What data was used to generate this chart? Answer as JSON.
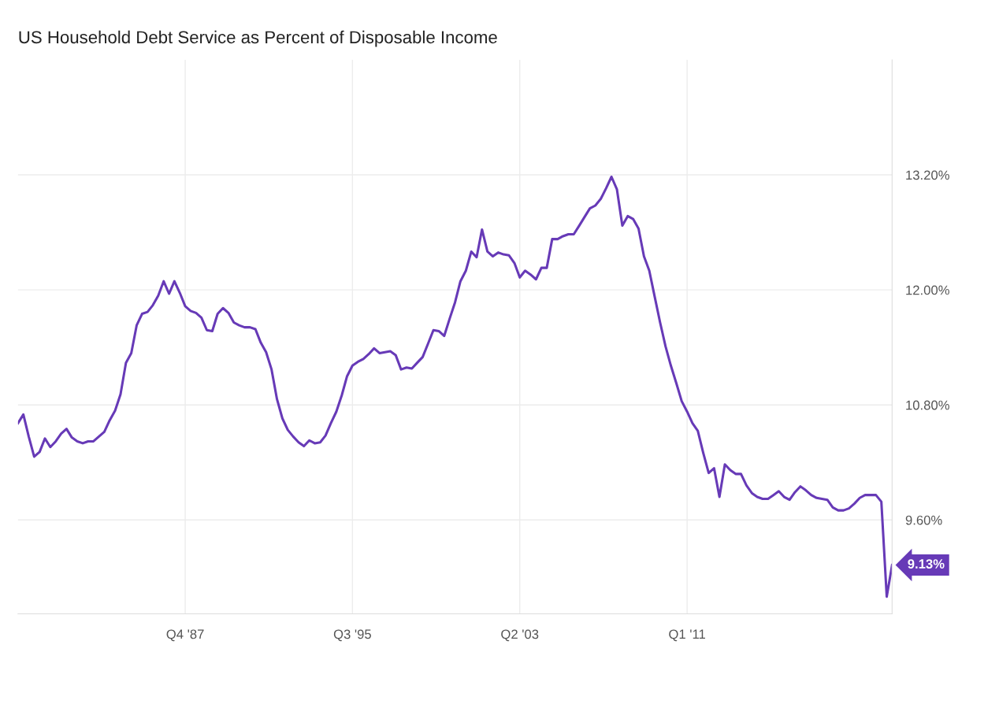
{
  "chart_data": {
    "type": "line",
    "title": "US Household Debt Service as Percent of Disposable Income",
    "x": [
      "1980-01",
      "1980-04",
      "1980-07",
      "1980-10",
      "1981-01",
      "1981-04",
      "1981-07",
      "1981-10",
      "1982-01",
      "1982-04",
      "1982-07",
      "1982-10",
      "1983-01",
      "1983-04",
      "1983-07",
      "1983-10",
      "1984-01",
      "1984-04",
      "1984-07",
      "1984-10",
      "1985-01",
      "1985-04",
      "1985-07",
      "1985-10",
      "1986-01",
      "1986-04",
      "1986-07",
      "1986-10",
      "1987-01",
      "1987-04",
      "1987-07",
      "1987-10",
      "1988-01",
      "1988-04",
      "1988-07",
      "1988-10",
      "1989-01",
      "1989-04",
      "1989-07",
      "1989-10",
      "1990-01",
      "1990-04",
      "1990-07",
      "1990-10",
      "1991-01",
      "1991-04",
      "1991-07",
      "1991-10",
      "1992-01",
      "1992-04",
      "1992-07",
      "1992-10",
      "1993-01",
      "1993-04",
      "1993-07",
      "1993-10",
      "1994-01",
      "1994-04",
      "1994-07",
      "1994-10",
      "1995-01",
      "1995-04",
      "1995-07",
      "1995-10",
      "1996-01",
      "1996-04",
      "1996-07",
      "1996-10",
      "1997-01",
      "1997-04",
      "1997-07",
      "1997-10",
      "1998-01",
      "1998-04",
      "1998-07",
      "1998-10",
      "1999-01",
      "1999-04",
      "1999-07",
      "1999-10",
      "2000-01",
      "2000-04",
      "2000-07",
      "2000-10",
      "2001-01",
      "2001-04",
      "2001-07",
      "2001-10",
      "2002-01",
      "2002-04",
      "2002-07",
      "2002-10",
      "2003-01",
      "2003-04",
      "2003-07",
      "2003-10",
      "2004-01",
      "2004-04",
      "2004-07",
      "2004-10",
      "2005-01",
      "2005-04",
      "2005-07",
      "2005-10",
      "2006-01",
      "2006-04",
      "2006-07",
      "2006-10",
      "2007-01",
      "2007-04",
      "2007-07",
      "2007-10",
      "2008-01",
      "2008-04",
      "2008-07",
      "2008-10",
      "2009-01",
      "2009-04",
      "2009-07",
      "2009-10",
      "2010-01",
      "2010-04",
      "2010-07",
      "2010-10",
      "2011-01",
      "2011-04",
      "2011-07",
      "2011-10",
      "2012-01",
      "2012-04",
      "2012-07",
      "2012-10",
      "2013-01",
      "2013-04",
      "2013-07",
      "2013-10",
      "2014-01",
      "2014-04",
      "2014-07",
      "2014-10",
      "2015-01",
      "2015-04",
      "2015-07",
      "2015-10",
      "2016-01",
      "2016-04",
      "2016-07",
      "2016-10",
      "2017-01",
      "2017-04",
      "2017-07",
      "2017-10",
      "2018-01",
      "2018-04",
      "2018-07",
      "2018-10",
      "2019-01",
      "2019-04",
      "2019-07",
      "2019-10",
      "2020-01",
      "2020-04",
      "2020-07"
    ],
    "series": [
      {
        "color": "#673ab7",
        "values": [
          10.61,
          10.7,
          10.47,
          10.26,
          10.31,
          10.45,
          10.36,
          10.42,
          10.5,
          10.55,
          10.46,
          10.42,
          10.4,
          10.42,
          10.42,
          10.47,
          10.52,
          10.64,
          10.74,
          10.91,
          11.24,
          11.34,
          11.63,
          11.75,
          11.77,
          11.84,
          11.94,
          12.09,
          11.96,
          12.09,
          11.97,
          11.83,
          11.78,
          11.76,
          11.71,
          11.58,
          11.57,
          11.75,
          11.81,
          11.76,
          11.66,
          11.63,
          11.61,
          11.61,
          11.59,
          11.45,
          11.35,
          11.17,
          10.86,
          10.66,
          10.54,
          10.47,
          10.41,
          10.37,
          10.43,
          10.4,
          10.41,
          10.48,
          10.61,
          10.73,
          10.9,
          11.1,
          11.21,
          11.25,
          11.28,
          11.33,
          11.39,
          11.34,
          11.35,
          11.36,
          11.32,
          11.17,
          11.19,
          11.18,
          11.24,
          11.3,
          11.44,
          11.58,
          11.57,
          11.52,
          11.7,
          11.87,
          12.09,
          12.2,
          12.4,
          12.34,
          12.63,
          12.4,
          12.35,
          12.39,
          12.37,
          12.36,
          12.28,
          12.13,
          12.2,
          12.16,
          12.11,
          12.23,
          12.23,
          12.53,
          12.53,
          12.56,
          12.58,
          12.58,
          12.67,
          12.76,
          12.85,
          12.88,
          12.95,
          13.06,
          13.18,
          13.05,
          12.67,
          12.77,
          12.74,
          12.64,
          12.35,
          12.2,
          11.93,
          11.66,
          11.41,
          11.21,
          11.03,
          10.84,
          10.73,
          10.61,
          10.53,
          10.3,
          10.09,
          10.14,
          9.84,
          10.18,
          10.12,
          10.08,
          10.08,
          9.96,
          9.88,
          9.84,
          9.82,
          9.82,
          9.86,
          9.9,
          9.84,
          9.81,
          9.89,
          9.95,
          9.91,
          9.86,
          9.83,
          9.82,
          9.81,
          9.73,
          9.7,
          9.7,
          9.72,
          9.77,
          9.83,
          9.86,
          9.86,
          9.86,
          9.79,
          8.8,
          9.13
        ]
      }
    ],
    "xlim": [
      "1980-01",
      "2020-07"
    ],
    "xticks": [
      {
        "value": "1987-10",
        "label": "Q4 '87"
      },
      {
        "value": "1995-07",
        "label": "Q3 '95"
      },
      {
        "value": "2003-04",
        "label": "Q2 '03"
      },
      {
        "value": "2011-01",
        "label": "Q1 '11"
      }
    ],
    "ylim": [
      8.62,
      14.4
    ],
    "yticks": [
      {
        "value": 9.6,
        "label": "9.60%"
      },
      {
        "value": 10.8,
        "label": "10.80%"
      },
      {
        "value": 12.0,
        "label": "12.00%"
      },
      {
        "value": 13.2,
        "label": "13.20%"
      }
    ],
    "grid": true,
    "legend": false,
    "marker": "none",
    "line_style": "solid",
    "annotations": [
      {
        "text": "9.13%",
        "x": "2020-07",
        "y": 9.13
      }
    ]
  }
}
